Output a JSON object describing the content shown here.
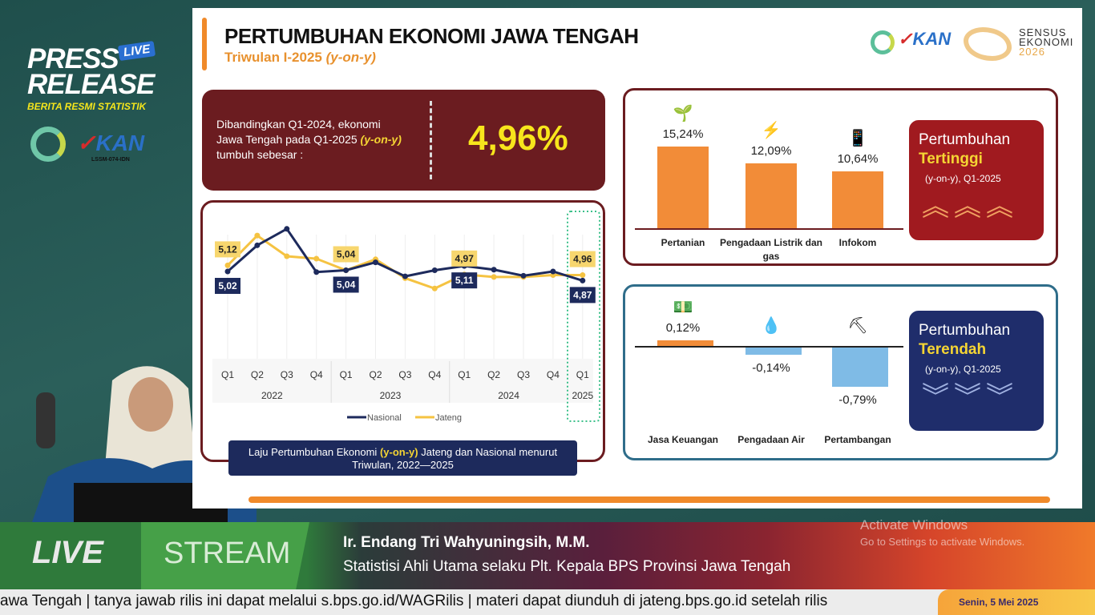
{
  "branding": {
    "press": "PRESS",
    "release": "RELEASE",
    "live_tag": "LIVE",
    "subtitle": "BERITA RESMI STATISTIK",
    "kan": "KAN",
    "kan_sub": "LSSM-074-IDN",
    "sensus_line1": "SENSUS",
    "sensus_line2": "EKONOMI",
    "sensus_line3": "2026"
  },
  "slide": {
    "title": "PERTUMBUHAN EKONOMI JAWA TENGAH",
    "subtitle": "Triwulan I-2025",
    "subtitle_em": "(y-on-y)",
    "info": {
      "text1": "Dibandingkan Q1-2024, ekonomi Jawa Tengah pada Q1-2025",
      "text_em": "(y-on-y)",
      "text2": "tumbuh sebesar :",
      "value": "4,96%"
    },
    "caption": {
      "pre": "Laju Pertumbuhan Ekonomi",
      "em": "(y-on-y)",
      "post": "Jateng dan Nasional menurut Triwulan, 2022—2025"
    },
    "highest": {
      "t1": "Pertumbuhan",
      "t2": "Tertinggi",
      "t3": "(y-on-y), Q1-2025",
      "accent": "#a01a1f",
      "items": [
        {
          "label": "Pertanian",
          "value": "15,24%",
          "num": 15.24,
          "icon": "sprout-icon"
        },
        {
          "label": "Pengadaan Listrik dan gas",
          "value": "12,09%",
          "num": 12.09,
          "icon": "lightning-icon"
        },
        {
          "label": "Infokom",
          "value": "10,64%",
          "num": 10.64,
          "icon": "phone-icon"
        }
      ]
    },
    "lowest": {
      "t1": "Pertumbuhan",
      "t2": "Terendah",
      "t3": "(y-on-y), Q1-2025",
      "accent": "#1f2d6b",
      "items": [
        {
          "label": "Jasa Keuangan",
          "value": "0,12%",
          "num": 0.12,
          "icon": "money-icon"
        },
        {
          "label": "Pengadaan Air",
          "value": "-0,14%",
          "num": -0.14,
          "icon": "water-drops-icon"
        },
        {
          "label": "Pertambangan",
          "value": "-0,79%",
          "num": -0.79,
          "icon": "mining-cart-icon"
        }
      ]
    }
  },
  "chart_data": {
    "type": "line",
    "categories": [
      "Q1",
      "Q2",
      "Q3",
      "Q4",
      "Q1",
      "Q2",
      "Q3",
      "Q4",
      "Q1",
      "Q2",
      "Q3",
      "Q4",
      "Q1"
    ],
    "years": [
      "2022",
      "2023",
      "2024",
      "2025"
    ],
    "series": [
      {
        "name": "Nasional",
        "color": "#1d2a5c",
        "values": [
          5.02,
          5.45,
          5.72,
          5.01,
          5.04,
          5.17,
          4.94,
          5.04,
          5.11,
          5.05,
          4.95,
          5.02,
          4.87
        ],
        "labels": {
          "0": "5,02",
          "4": "5,04",
          "8": "5,11",
          "12": "4,87"
        }
      },
      {
        "name": "Jateng",
        "color": "#f5c342",
        "values": [
          5.12,
          5.61,
          5.27,
          5.23,
          5.04,
          5.22,
          4.91,
          4.74,
          4.97,
          4.93,
          4.93,
          4.96,
          4.96
        ],
        "labels": {
          "0": "5,12",
          "4": "5,04",
          "8": "4,97",
          "12": "4,96"
        }
      }
    ]
  },
  "lower_third": {
    "live": "LIVE",
    "stream": "STREAM",
    "name": "Ir. Endang Tri Wahyuningsih, M.M.",
    "role": "Statistisi Ahli Utama selaku Plt. Kepala BPS Provinsi Jawa Tengah"
  },
  "ticker": {
    "text": "awa Tengah   |  tanya jawab rilis ini dapat melalui s.bps.go.id/WAGRilis  |  materi dapat diunduh di jateng.bps.go.id setelah rilis",
    "date": "Senin, 5 Mei 2025"
  },
  "watermark": {
    "line1": "Activate Windows",
    "line2": "Go to Settings to activate Windows."
  }
}
